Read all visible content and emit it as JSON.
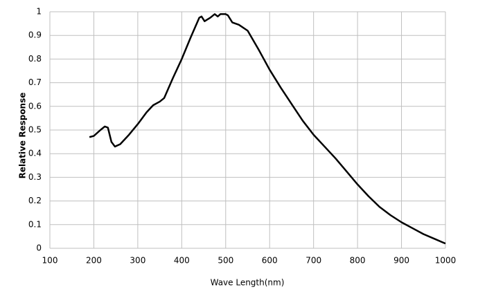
{
  "chart_data": {
    "type": "line",
    "x_label": "Wave Length(nm)",
    "y_label": "Relative Response",
    "x": [
      190,
      200,
      215,
      225,
      232,
      240,
      248,
      260,
      280,
      300,
      320,
      335,
      350,
      360,
      380,
      400,
      420,
      440,
      445,
      452,
      465,
      475,
      482,
      488,
      500,
      505,
      515,
      530,
      550,
      575,
      600,
      625,
      650,
      675,
      700,
      725,
      750,
      775,
      800,
      825,
      850,
      875,
      900,
      925,
      950,
      975,
      1000
    ],
    "series": [
      {
        "color": "#000000",
        "values": [
          0.47,
          0.475,
          0.5,
          0.515,
          0.51,
          0.45,
          0.43,
          0.44,
          0.48,
          0.525,
          0.575,
          0.605,
          0.62,
          0.635,
          0.72,
          0.8,
          0.89,
          0.975,
          0.98,
          0.96,
          0.975,
          0.99,
          0.98,
          0.99,
          0.99,
          0.985,
          0.955,
          0.945,
          0.92,
          0.84,
          0.755,
          0.68,
          0.61,
          0.54,
          0.48,
          0.43,
          0.38,
          0.325,
          0.27,
          0.22,
          0.175,
          0.14,
          0.11,
          0.085,
          0.06,
          0.04,
          0.02
        ]
      }
    ],
    "xlim": [
      100,
      1000
    ],
    "xticks": [
      100,
      200,
      300,
      400,
      500,
      600,
      700,
      800,
      900,
      1000
    ],
    "ylim": [
      0,
      1
    ],
    "yticks": [
      0,
      0.1,
      0.2,
      0.3,
      0.4,
      0.5,
      0.6,
      0.7,
      0.8,
      0.9,
      1
    ],
    "grid": true
  }
}
